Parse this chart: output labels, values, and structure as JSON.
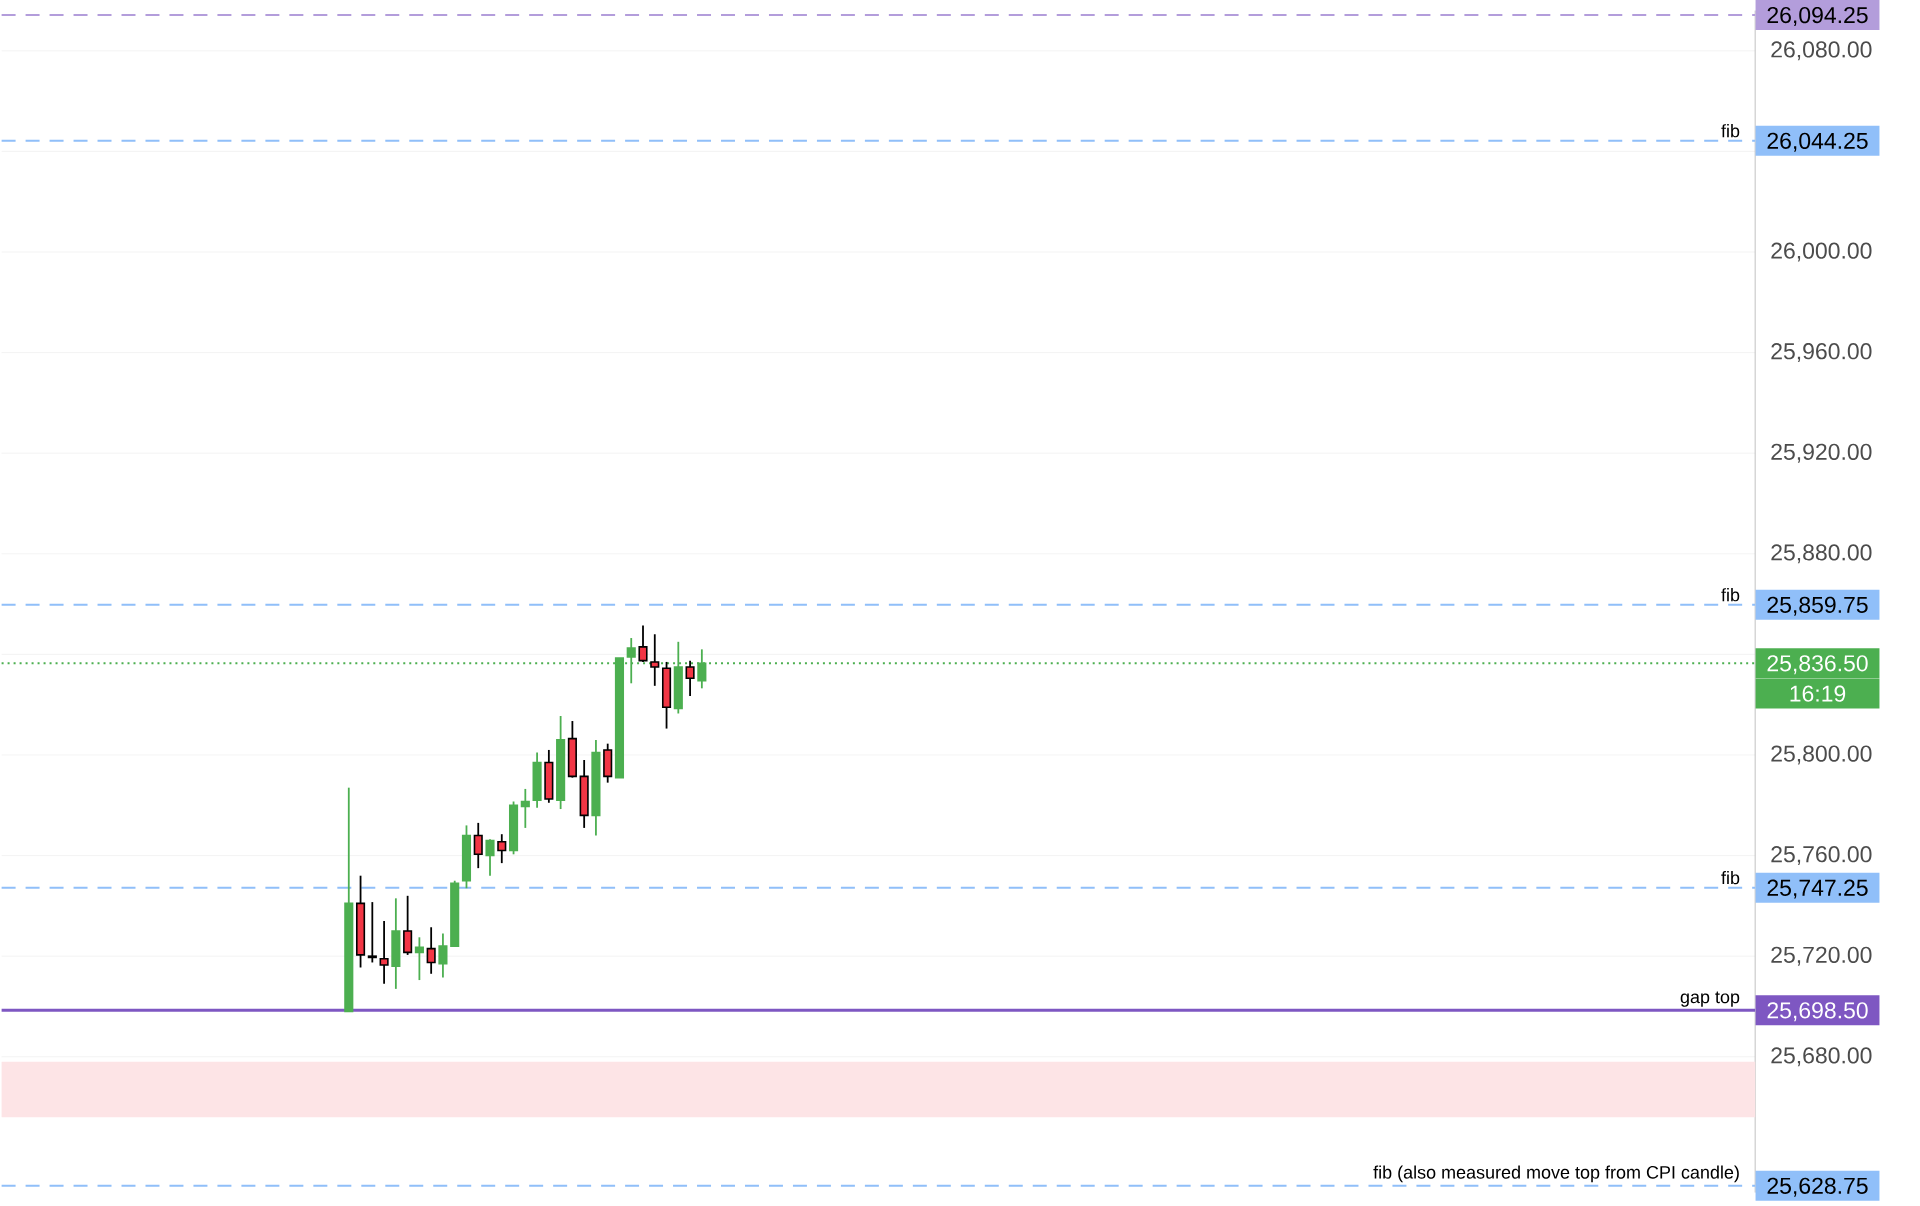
{
  "chart_data": {
    "type": "candlestick",
    "categories": [
      null,
      null,
      null,
      null,
      null,
      null,
      null,
      null,
      null,
      null,
      null,
      null,
      null,
      null,
      null,
      null,
      null,
      null,
      null,
      null,
      null,
      null,
      null,
      null,
      null,
      null,
      null,
      null,
      null,
      null,
      null,
      null,
      null,
      null,
      null,
      null,
      null,
      null,
      null,
      null,
      null,
      null,
      null,
      null,
      null,
      null,
      null,
      null,
      null,
      null,
      null,
      null,
      null,
      null,
      null,
      null,
      null,
      null,
      null,
      null,
      null,
      null,
      null,
      null,
      null,
      null,
      null,
      null,
      null,
      null,
      null,
      null,
      null,
      null,
      null,
      null,
      null,
      null,
      null,
      null,
      null,
      null,
      null,
      null,
      null,
      null,
      null,
      null,
      null,
      null,
      null,
      null,
      null,
      null,
      null,
      null,
      null,
      null,
      null,
      null,
      null,
      null,
      null,
      null,
      null,
      null,
      null,
      null,
      null,
      null,
      null,
      null,
      null,
      null,
      null,
      null,
      null,
      null,
      null,
      null,
      null,
      null,
      null,
      null,
      null,
      null,
      null,
      null,
      null,
      null,
      null,
      null,
      null,
      null,
      null,
      null,
      null,
      null,
      null,
      null,
      null,
      null,
      null,
      null,
      null,
      null,
      null,
      null,
      null
    ],
    "ohlc": [
      null,
      null,
      null,
      null,
      null,
      null,
      null,
      null,
      null,
      null,
      null,
      null,
      null,
      null,
      null,
      null,
      null,
      null,
      null,
      null,
      null,
      null,
      null,
      null,
      null,
      null,
      null,
      null,
      null,
      [
        25698,
        25787,
        25698,
        25741
      ],
      [
        25741,
        25752,
        25715.5,
        25720.5
      ],
      [
        25720,
        25741.5,
        25717.5,
        25719.5
      ],
      [
        25719,
        25734,
        25709,
        25716.5
      ],
      [
        25716,
        25743,
        25707,
        25730
      ],
      [
        25730,
        25744,
        25720.5,
        25721.5
      ],
      [
        25721.5,
        25727.5,
        25710.5,
        25723.5
      ],
      [
        25723,
        25731.5,
        25713,
        25717.5
      ],
      [
        25717,
        25729,
        25711.5,
        25724
      ],
      [
        25724,
        25750,
        25724,
        25749
      ],
      [
        25750,
        25772,
        25747,
        25768
      ],
      [
        25768,
        25773,
        25755,
        25760.5
      ],
      [
        25760,
        25766.5,
        25752,
        25766
      ],
      [
        25765.5,
        25768.5,
        25757,
        25762
      ],
      [
        25762,
        25781.5,
        25760.5,
        25780
      ],
      [
        25779.5,
        25786.5,
        25771,
        25781.5
      ],
      [
        25782,
        25801,
        25779,
        25797
      ],
      [
        25797,
        25802,
        25781,
        25782.5
      ],
      [
        25782,
        25815.5,
        25778.5,
        25806
      ],
      [
        25806.5,
        25813.5,
        25791,
        25791.5
      ],
      [
        25791.5,
        25798,
        25771,
        25776
      ],
      [
        25776,
        25806,
        25768,
        25801
      ],
      [
        25802,
        25804.5,
        25789,
        25791.5
      ],
      [
        25791,
        25838.5,
        25791,
        25838.5
      ],
      [
        25839,
        25846.5,
        25828.5,
        25842.5
      ],
      [
        25843,
        25851.5,
        25837,
        25837.5
      ],
      [
        25837,
        25848,
        25827.5,
        25835
      ],
      [
        25834.5,
        25837,
        25810.5,
        25819
      ],
      [
        25818.5,
        25845,
        25816.5,
        25835
      ],
      [
        25835,
        25837.5,
        25823.5,
        25830.5
      ],
      [
        25829.5,
        25842,
        25826.5,
        25836.5
      ],
      null,
      null,
      null,
      null,
      null,
      null,
      null,
      null,
      null,
      null,
      null,
      null,
      null,
      null,
      null,
      null,
      null,
      null,
      null,
      null,
      null,
      null,
      null,
      null,
      null,
      null,
      null,
      null,
      null,
      null,
      null,
      null,
      null,
      null,
      null,
      null,
      null,
      null,
      null,
      null,
      null,
      null,
      null,
      null,
      null,
      null,
      null,
      null,
      null,
      null,
      null,
      null,
      null,
      null,
      null,
      null,
      null,
      null,
      null,
      null,
      null,
      null,
      null,
      null,
      null,
      null,
      null,
      null,
      null,
      null,
      null,
      null,
      null,
      null,
      null,
      null,
      null,
      null,
      null,
      null,
      null,
      null,
      null,
      null,
      null,
      null,
      null,
      null,
      null
    ],
    "colors": [
      null,
      null,
      null,
      null,
      null,
      null,
      null,
      null,
      null,
      null,
      null,
      null,
      null,
      null,
      null,
      null,
      null,
      null,
      null,
      null,
      null,
      null,
      null,
      null,
      null,
      null,
      null,
      null,
      null,
      "#4caf50",
      "#f23645",
      "#000000",
      "#f23645",
      "#4caf50",
      "#f23645",
      "#4caf50",
      "#f23645",
      "#4caf50",
      "#4caf50",
      "#4caf50",
      "#f23645",
      "#4caf50",
      "#f23645",
      "#4caf50",
      "#4caf50",
      "#4caf50",
      "#f23645",
      "#4caf50",
      "#f23645",
      "#f23645",
      "#4caf50",
      "#f23645",
      "#4caf50",
      "#4caf50",
      "#f23645",
      "#f23645",
      "#f23645",
      "#4caf50",
      "#f23645",
      "#4caf50",
      null,
      null,
      null,
      null,
      null,
      null,
      null,
      null,
      null,
      null,
      null,
      null,
      null,
      null,
      null,
      null,
      null,
      null,
      null,
      null,
      null,
      null,
      null,
      null,
      null,
      null,
      null,
      null,
      null,
      null,
      null,
      null,
      null,
      null,
      null,
      null,
      null,
      null,
      null,
      null,
      null,
      null,
      null,
      null,
      null,
      null,
      null,
      null,
      null,
      null,
      null,
      null,
      null,
      null,
      null,
      null,
      null,
      null,
      null,
      null,
      null,
      null,
      null,
      null,
      null,
      null,
      null,
      null,
      null,
      null,
      null,
      null,
      null,
      null,
      null,
      null,
      null,
      null,
      null,
      null,
      null,
      null,
      null,
      null,
      null,
      null,
      null,
      null,
      null
    ],
    "ylim": [
      25626,
      26096
    ],
    "yticks": [
      {
        "value": 25680,
        "label": "25,680.00"
      },
      {
        "value": 25720,
        "label": "25,720.00"
      },
      {
        "value": 25760,
        "label": "25,760.00"
      },
      {
        "value": 25800,
        "label": "25,800.00"
      },
      {
        "value": 25840,
        "label": null
      },
      {
        "value": 25880,
        "label": "25,880.00"
      },
      {
        "value": 25920,
        "label": "25,920.00"
      },
      {
        "value": 25960,
        "label": "25,960.00"
      },
      {
        "value": 26000,
        "label": "26,000.00"
      },
      {
        "value": 26040,
        "label": null
      },
      {
        "value": 26080,
        "label": "26,080.00"
      }
    ],
    "grid": "y",
    "ref_lines": [
      {
        "axis": "y",
        "value": 26094.25,
        "label": null,
        "color": "#b39ddb",
        "line_style": "dashed"
      },
      {
        "axis": "y",
        "value": 26044.25,
        "label": "fib",
        "color": "#90bff9",
        "line_style": "dashed"
      },
      {
        "axis": "y",
        "value": 25859.75,
        "label": "fib",
        "color": "#90bff9",
        "line_style": "dashed"
      },
      {
        "axis": "y",
        "value": 25836.5,
        "label": null,
        "color": "#4caf50",
        "line_style": "dotted"
      },
      {
        "axis": "y",
        "value": 25747.25,
        "label": "fib",
        "color": "#90bff9",
        "line_style": "dashed"
      },
      {
        "axis": "y",
        "value": 25698.5,
        "label": "gap top",
        "color": "#7e57c2",
        "line_style": "solid"
      },
      {
        "axis": "y",
        "value": 25628.75,
        "label": "fib (also measured move top from CPI candle)",
        "color": "#90bff9",
        "line_style": "dashed"
      }
    ],
    "bands": [
      {
        "axis": "y",
        "from": 25656,
        "to": 25678,
        "label": null,
        "color": "#fde4e6"
      }
    ],
    "annotations": [
      "26,094.25",
      "26,044.25",
      "25,859.75",
      "25,836.50",
      "25,747.25",
      "25,698.50",
      "25,628.75",
      "16:19"
    ]
  }
}
